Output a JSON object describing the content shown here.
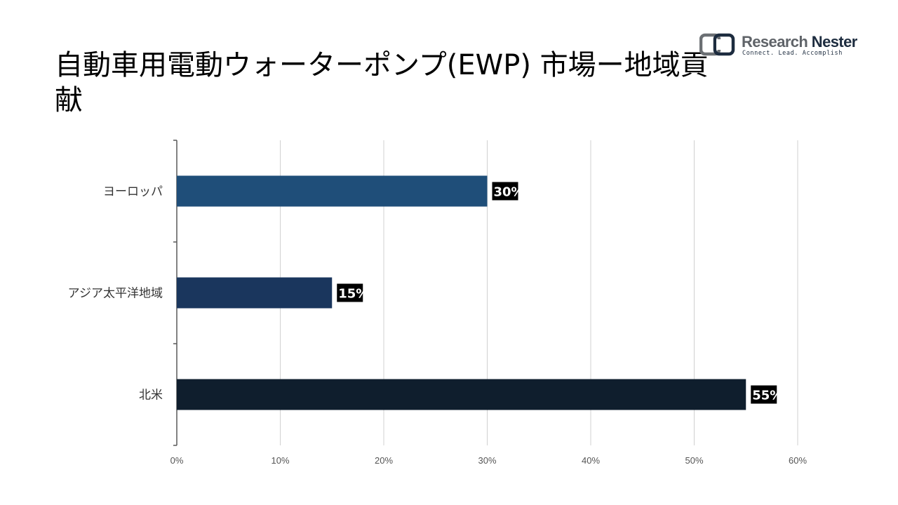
{
  "title": "自動車用電動ウォーターポンプ(EWP) 市場ー地域貢献",
  "logo": {
    "name_part1": "Research",
    "name_part2": "Nester",
    "tagline": "Connect. Lead. Accomplish"
  },
  "colors": {
    "europe_bar": "#1f4e79",
    "apac_bar": "#1a365d",
    "north_america_bar": "#0f1e2d",
    "gridline": "#d0d0d0",
    "axis": "#595959",
    "label_bg": "#000000"
  },
  "chart_data": {
    "type": "bar",
    "orientation": "horizontal",
    "title": "自動車用電動ウォーターポンプ(EWP) 市場ー地域貢献",
    "categories": [
      "ヨーロッパ",
      "アジア太平洋地域",
      "北米"
    ],
    "values": [
      30,
      15,
      55
    ],
    "value_labels": [
      "30%",
      "15%",
      "55%"
    ],
    "xlim": [
      0,
      60
    ],
    "xticks": [
      0,
      10,
      20,
      30,
      40,
      50,
      60
    ],
    "xtick_labels": [
      "0%",
      "10%",
      "20%",
      "30%",
      "40%",
      "50%",
      "60%"
    ],
    "grid": true,
    "legend": false
  }
}
